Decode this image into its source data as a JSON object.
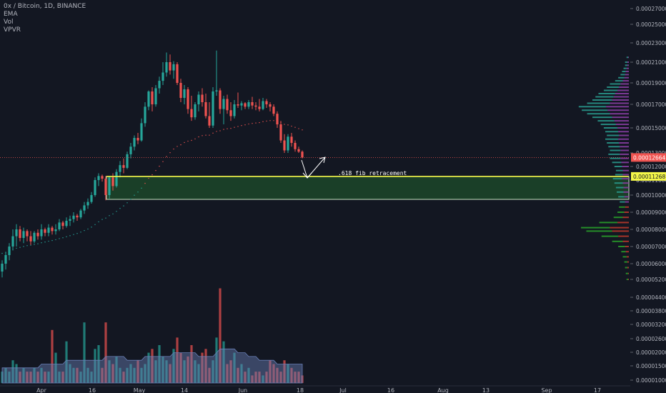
{
  "legend": {
    "title": "0x / Bitcoin, 1D, BINANCE",
    "indicators": [
      "EMA",
      "Vol",
      "VPVR"
    ]
  },
  "colors": {
    "background": "#131722",
    "up": "#26a69a",
    "down": "#ef5350",
    "fib_line": "#f5f749",
    "zone_fill": "#1e4d2b",
    "zone_border": "#c9e6c4",
    "current_price": "#ef5350",
    "volume_ma": "#6a80b8",
    "vpvr_up": "#2a9d8f",
    "vpvr_down": "#8e3fa8",
    "vpvr_green": "#29a329",
    "vpvr_red": "#c0392b"
  },
  "chart_data": {
    "type": "candlestick",
    "symbol": "0x / Bitcoin",
    "timeframe": "1D",
    "exchange": "BINANCE",
    "x_axis_labels": [
      "Apr",
      "16",
      "May",
      "14",
      "Jun",
      "18",
      "Jul",
      "16",
      "Aug",
      "13",
      "Sep",
      "17"
    ],
    "price_axis_labels": [
      "0.00027000",
      "0.00025000",
      "0.00023000",
      "0.00021000",
      "0.00019000",
      "0.00017000",
      "0.00015000",
      "0.00013000",
      "0.00012000",
      "0.00011000",
      "0.00010000",
      "0.00009000",
      "0.00008000",
      "0.00007000",
      "0.00006000",
      "0.00005200"
    ],
    "volume_axis_labels": [
      "0.00004400",
      "0.00003800",
      "0.00003200",
      "0.00002600",
      "0.00002000",
      "0.00001500",
      "0.00001000"
    ],
    "current_price": "0.00012664",
    "fib_price": "0.00011268",
    "annotation": ".618 fib retracement",
    "zone": {
      "top": 0.00011268,
      "bottom": 9.75e-05
    },
    "candles": [
      {
        "o": 5.6e-05,
        "h": 6.2e-05,
        "l": 5.3e-05,
        "c": 6e-05
      },
      {
        "o": 6e-05,
        "h": 6.7e-05,
        "l": 5.7e-05,
        "c": 6.5e-05
      },
      {
        "o": 6.5e-05,
        "h": 7.2e-05,
        "l": 6.2e-05,
        "c": 7e-05
      },
      {
        "o": 7e-05,
        "h": 8e-05,
        "l": 6.8e-05,
        "c": 7.6e-05
      },
      {
        "o": 7.6e-05,
        "h": 8.3e-05,
        "l": 7e-05,
        "c": 8e-05
      },
      {
        "o": 8e-05,
        "h": 8.2e-05,
        "l": 7.3e-05,
        "c": 7.5e-05
      },
      {
        "o": 7.5e-05,
        "h": 8.1e-05,
        "l": 7.2e-05,
        "c": 7.9e-05
      },
      {
        "o": 7.9e-05,
        "h": 8e-05,
        "l": 7.3e-05,
        "c": 7.6e-05
      },
      {
        "o": 7.6e-05,
        "h": 7.9e-05,
        "l": 7.1e-05,
        "c": 7.3e-05
      },
      {
        "o": 7.3e-05,
        "h": 7.9e-05,
        "l": 7.2e-05,
        "c": 7.8e-05
      },
      {
        "o": 7.8e-05,
        "h": 8e-05,
        "l": 7.4e-05,
        "c": 7.6e-05
      },
      {
        "o": 7.6e-05,
        "h": 8.3e-05,
        "l": 7.4e-05,
        "c": 8e-05
      },
      {
        "o": 8e-05,
        "h": 8.1e-05,
        "l": 7.6e-05,
        "c": 7.8e-05
      },
      {
        "o": 7.8e-05,
        "h": 8.3e-05,
        "l": 7.6e-05,
        "c": 8.1e-05
      },
      {
        "o": 8.1e-05,
        "h": 8.2e-05,
        "l": 7.7e-05,
        "c": 7.9e-05
      },
      {
        "o": 7.9e-05,
        "h": 8.3e-05,
        "l": 7.7e-05,
        "c": 8e-05
      },
      {
        "o": 8e-05,
        "h": 8.6e-05,
        "l": 7.9e-05,
        "c": 8.4e-05
      },
      {
        "o": 8.4e-05,
        "h": 8.5e-05,
        "l": 8e-05,
        "c": 8.2e-05
      },
      {
        "o": 8.2e-05,
        "h": 8.7e-05,
        "l": 8.1e-05,
        "c": 8.5e-05
      },
      {
        "o": 8.5e-05,
        "h": 8.8e-05,
        "l": 8.2e-05,
        "c": 8.6e-05
      },
      {
        "o": 8.6e-05,
        "h": 9e-05,
        "l": 8.4e-05,
        "c": 8.8e-05
      },
      {
        "o": 8.8e-05,
        "h": 8.9e-05,
        "l": 8.5e-05,
        "c": 8.7e-05
      },
      {
        "o": 8.7e-05,
        "h": 9.2e-05,
        "l": 8.6e-05,
        "c": 9.1e-05
      },
      {
        "o": 9.1e-05,
        "h": 9.6e-05,
        "l": 8.9e-05,
        "c": 9.4e-05
      },
      {
        "o": 9.4e-05,
        "h": 9.8e-05,
        "l": 9.2e-05,
        "c": 9.6e-05
      },
      {
        "o": 9.6e-05,
        "h": 0.000102,
        "l": 9.5e-05,
        "c": 0.0001
      },
      {
        "o": 0.0001,
        "h": 0.000112,
        "l": 9.9e-05,
        "c": 0.00011
      },
      {
        "o": 0.00011,
        "h": 0.000115,
        "l": 0.000106,
        "c": 0.000113
      },
      {
        "o": 0.000113,
        "h": 0.000114,
        "l": 0.000109,
        "c": 0.000111
      },
      {
        "o": 0.000111,
        "h": 0.000113,
        "l": 9.7e-05,
        "c": 0.0001
      },
      {
        "o": 0.0001,
        "h": 0.000113,
        "l": 9.8e-05,
        "c": 0.000112
      },
      {
        "o": 0.000112,
        "h": 0.000115,
        "l": 0.000103,
        "c": 0.000106
      },
      {
        "o": 0.000106,
        "h": 0.000118,
        "l": 0.000105,
        "c": 0.000116
      },
      {
        "o": 0.000116,
        "h": 0.000124,
        "l": 0.000112,
        "c": 0.000121
      },
      {
        "o": 0.000121,
        "h": 0.000126,
        "l": 0.000115,
        "c": 0.000119
      },
      {
        "o": 0.000119,
        "h": 0.000131,
        "l": 0.000118,
        "c": 0.000129
      },
      {
        "o": 0.000129,
        "h": 0.000138,
        "l": 0.000126,
        "c": 0.000135
      },
      {
        "o": 0.000135,
        "h": 0.000144,
        "l": 0.000132,
        "c": 0.000142
      },
      {
        "o": 0.000142,
        "h": 0.000146,
        "l": 0.000137,
        "c": 0.00014
      },
      {
        "o": 0.00014,
        "h": 0.000158,
        "l": 0.000139,
        "c": 0.000154
      },
      {
        "o": 0.000154,
        "h": 0.000172,
        "l": 0.000151,
        "c": 0.000168
      },
      {
        "o": 0.000168,
        "h": 0.000183,
        "l": 0.000165,
        "c": 0.000182
      },
      {
        "o": 0.000182,
        "h": 0.000186,
        "l": 0.000164,
        "c": 0.00017
      },
      {
        "o": 0.00017,
        "h": 0.000188,
        "l": 0.000168,
        "c": 0.000185
      },
      {
        "o": 0.000185,
        "h": 0.000196,
        "l": 0.00018,
        "c": 0.000192
      },
      {
        "o": 0.000192,
        "h": 0.00021,
        "l": 0.000188,
        "c": 0.0002
      },
      {
        "o": 0.0002,
        "h": 0.00022,
        "l": 0.000196,
        "c": 0.00021
      },
      {
        "o": 0.00021,
        "h": 0.000218,
        "l": 0.000198,
        "c": 0.000202
      },
      {
        "o": 0.000202,
        "h": 0.000211,
        "l": 0.000194,
        "c": 0.000208
      },
      {
        "o": 0.000208,
        "h": 0.00021,
        "l": 0.000188,
        "c": 0.00019
      },
      {
        "o": 0.00019,
        "h": 0.000194,
        "l": 0.000172,
        "c": 0.000176
      },
      {
        "o": 0.000176,
        "h": 0.000188,
        "l": 0.00017,
        "c": 0.000184
      },
      {
        "o": 0.000184,
        "h": 0.000186,
        "l": 0.000162,
        "c": 0.000166
      },
      {
        "o": 0.000166,
        "h": 0.000178,
        "l": 0.000156,
        "c": 0.000159
      },
      {
        "o": 0.000159,
        "h": 0.000172,
        "l": 0.000157,
        "c": 0.00017
      },
      {
        "o": 0.00017,
        "h": 0.000182,
        "l": 0.000164,
        "c": 0.000179
      },
      {
        "o": 0.000179,
        "h": 0.000185,
        "l": 0.000168,
        "c": 0.000172
      },
      {
        "o": 0.000172,
        "h": 0.00018,
        "l": 0.000158,
        "c": 0.00016
      },
      {
        "o": 0.00016,
        "h": 0.000172,
        "l": 0.00015,
        "c": 0.000152
      },
      {
        "o": 0.000152,
        "h": 0.000186,
        "l": 0.00015,
        "c": 0.000182
      },
      {
        "o": 0.000182,
        "h": 0.000222,
        "l": 0.000178,
        "c": 0.000183
      },
      {
        "o": 0.000183,
        "h": 0.000185,
        "l": 0.000162,
        "c": 0.000166
      },
      {
        "o": 0.000166,
        "h": 0.000178,
        "l": 0.000153,
        "c": 0.000175
      },
      {
        "o": 0.000175,
        "h": 0.000179,
        "l": 0.000162,
        "c": 0.000165
      },
      {
        "o": 0.000165,
        "h": 0.000172,
        "l": 0.000156,
        "c": 0.00016
      },
      {
        "o": 0.00016,
        "h": 0.000174,
        "l": 0.000158,
        "c": 0.00017
      },
      {
        "o": 0.00017,
        "h": 0.000181,
        "l": 0.000167,
        "c": 0.000169
      },
      {
        "o": 0.000169,
        "h": 0.000173,
        "l": 0.000165,
        "c": 0.000171
      },
      {
        "o": 0.000171,
        "h": 0.000172,
        "l": 0.000166,
        "c": 0.000168
      },
      {
        "o": 0.000168,
        "h": 0.000174,
        "l": 0.000166,
        "c": 0.000172
      },
      {
        "o": 0.000172,
        "h": 0.000177,
        "l": 0.000166,
        "c": 0.000169
      },
      {
        "o": 0.000169,
        "h": 0.000172,
        "l": 0.000165,
        "c": 0.000168
      },
      {
        "o": 0.000168,
        "h": 0.000175,
        "l": 0.000164,
        "c": 0.000166
      },
      {
        "o": 0.000166,
        "h": 0.000176,
        "l": 0.000165,
        "c": 0.000173
      },
      {
        "o": 0.000173,
        "h": 0.000175,
        "l": 0.000167,
        "c": 0.00017
      },
      {
        "o": 0.00017,
        "h": 0.000172,
        "l": 0.000164,
        "c": 0.000168
      },
      {
        "o": 0.000168,
        "h": 0.00017,
        "l": 0.00016,
        "c": 0.000162
      },
      {
        "o": 0.000162,
        "h": 0.000164,
        "l": 0.00015,
        "c": 0.000153
      },
      {
        "o": 0.000153,
        "h": 0.000156,
        "l": 0.000138,
        "c": 0.00014
      },
      {
        "o": 0.00014,
        "h": 0.000145,
        "l": 0.00013,
        "c": 0.000132
      },
      {
        "o": 0.000132,
        "h": 0.000145,
        "l": 0.00013,
        "c": 0.000143
      },
      {
        "o": 0.000143,
        "h": 0.000146,
        "l": 0.000135,
        "c": 0.000138
      },
      {
        "o": 0.000138,
        "h": 0.00014,
        "l": 0.000131,
        "c": 0.000133
      },
      {
        "o": 0.000133,
        "h": 0.000135,
        "l": 0.00013,
        "c": 0.000131
      },
      {
        "o": 0.000131,
        "h": 0.000132,
        "l": 0.000126,
        "c": 0.0001266
      }
    ],
    "volume": [
      3,
      4,
      3,
      6,
      5,
      3,
      4,
      3,
      3,
      4,
      3,
      4,
      3,
      3,
      14,
      8,
      3,
      3,
      11,
      5,
      4,
      4,
      3,
      16,
      4,
      3,
      9,
      10,
      4,
      16,
      6,
      5,
      7,
      4,
      3,
      4,
      5,
      4,
      6,
      4,
      5,
      8,
      9,
      6,
      10,
      7,
      6,
      5,
      9,
      12,
      8,
      6,
      7,
      10,
      6,
      5,
      8,
      9,
      4,
      6,
      12,
      25,
      11,
      5,
      6,
      8,
      4,
      5,
      3,
      4,
      2,
      3,
      3,
      2,
      3,
      6,
      5,
      4,
      3,
      6,
      5,
      4,
      3,
      3,
      2
    ],
    "volume_ma": [
      4,
      4,
      4,
      4,
      4,
      4,
      4,
      4,
      4,
      4,
      4,
      5,
      5,
      5,
      5,
      5,
      5,
      5,
      6,
      6,
      6,
      6,
      6,
      6,
      6,
      6,
      6,
      6,
      6,
      7,
      7,
      7,
      7,
      7,
      7,
      6,
      6,
      6,
      6,
      6,
      7,
      7,
      7,
      7,
      7,
      7,
      7,
      7,
      8,
      8,
      8,
      8,
      8,
      8,
      8,
      7,
      7,
      7,
      7,
      7,
      8,
      9,
      9,
      9,
      9,
      9,
      8,
      8,
      8,
      7,
      7,
      7,
      6,
      6,
      6,
      6,
      6,
      5,
      5,
      5,
      5,
      5,
      5,
      5,
      5
    ],
    "ema": [
      6.6e-05,
      6.65e-05,
      6.7e-05,
      6.8e-05,
      6.9e-05,
      6.95e-05,
      7e-05,
      7.05e-05,
      7.08e-05,
      7.12e-05,
      7.16e-05,
      7.22e-05,
      7.26e-05,
      7.31e-05,
      7.35e-05,
      7.4e-05,
      7.46e-05,
      7.51e-05,
      7.57e-05,
      7.63e-05,
      7.7e-05,
      7.76e-05,
      7.84e-05,
      7.93e-05,
      8.02e-05,
      8.13e-05,
      8.28e-05,
      8.44e-05,
      8.58e-05,
      8.66e-05,
      8.8e-05,
      8.9e-05,
      9.05e-05,
      9.22e-05,
      9.37e-05,
      9.55e-05,
      9.76e-05,
      9.99e-05,
      0.000102,
      0.0001046,
      0.0001078,
      0.0001113,
      0.0001139,
      0.000117,
      0.0001202,
      0.0001236,
      0.0001273,
      0.0001302,
      0.0001331,
      0.0001352,
      0.0001365,
      0.0001383,
      0.0001394,
      0.00014,
      0.0001412,
      0.0001428,
      0.0001438,
      0.0001442,
      0.0001442,
      0.0001458,
      0.0001472,
      0.0001477,
      0.0001488,
      0.0001493,
      0.0001496,
      0.0001505,
      0.0001512,
      0.000152,
      0.0001526,
      0.0001533,
      0.0001538,
      0.0001542,
      0.0001545,
      0.0001553,
      0.0001558,
      0.0001562,
      0.0001562,
      0.0001558,
      0.0001545,
      0.000153,
      0.0001525,
      0.0001515,
      0.0001505,
      0.0001494,
      0.0001484
    ],
    "vpvr": [
      {
        "price": 5.2e-05,
        "up": 2,
        "down": 1
      },
      {
        "price": 5.5e-05,
        "up": 3,
        "down": 1
      },
      {
        "price": 5.8e-05,
        "up": 3,
        "down": 2
      },
      {
        "price": 6.1e-05,
        "up": 4,
        "down": 2
      },
      {
        "price": 6.4e-05,
        "up": 5,
        "down": 3
      },
      {
        "price": 6.7e-05,
        "up": 6,
        "down": 4
      },
      {
        "price": 7e-05,
        "up": 9,
        "down": 5
      },
      {
        "price": 7.3e-05,
        "up": 14,
        "down": 8
      },
      {
        "price": 7.6e-05,
        "up": 22,
        "down": 14
      },
      {
        "price": 7.9e-05,
        "up": 34,
        "down": 22
      },
      {
        "price": 8.1e-05,
        "up": 38,
        "down": 25
      },
      {
        "price": 8.4e-05,
        "up": 24,
        "down": 15
      },
      {
        "price": 8.7e-05,
        "up": 12,
        "down": 8
      },
      {
        "price": 9e-05,
        "up": 9,
        "down": 6
      },
      {
        "price": 9.3e-05,
        "up": 8,
        "down": 5
      },
      {
        "price": 9.6e-05,
        "up": 7,
        "down": 5
      },
      {
        "price": 9.9e-05,
        "up": 8,
        "down": 6
      },
      {
        "price": 0.000102,
        "up": 9,
        "down": 7
      },
      {
        "price": 0.000105,
        "up": 10,
        "down": 7
      },
      {
        "price": 0.000108,
        "up": 11,
        "down": 8
      },
      {
        "price": 0.000111,
        "up": 12,
        "down": 9
      },
      {
        "price": 0.000114,
        "up": 10,
        "down": 8
      },
      {
        "price": 0.000117,
        "up": 9,
        "down": 8
      },
      {
        "price": 0.00012,
        "up": 10,
        "down": 9
      },
      {
        "price": 0.000123,
        "up": 12,
        "down": 10
      },
      {
        "price": 0.000126,
        "up": 14,
        "down": 11
      },
      {
        "price": 0.000129,
        "up": 15,
        "down": 12
      },
      {
        "price": 0.000132,
        "up": 14,
        "down": 11
      },
      {
        "price": 0.000135,
        "up": 15,
        "down": 12
      },
      {
        "price": 0.000138,
        "up": 16,
        "down": 13
      },
      {
        "price": 0.000141,
        "up": 17,
        "down": 14
      },
      {
        "price": 0.000144,
        "up": 16,
        "down": 13
      },
      {
        "price": 0.000147,
        "up": 17,
        "down": 14
      },
      {
        "price": 0.00015,
        "up": 18,
        "down": 15
      },
      {
        "price": 0.000153,
        "up": 20,
        "down": 17
      },
      {
        "price": 0.000156,
        "up": 22,
        "down": 19
      },
      {
        "price": 0.000159,
        "up": 26,
        "down": 22
      },
      {
        "price": 0.000162,
        "up": 30,
        "down": 25
      },
      {
        "price": 0.000165,
        "up": 34,
        "down": 28
      },
      {
        "price": 0.000168,
        "up": 36,
        "down": 30
      },
      {
        "price": 0.000171,
        "up": 30,
        "down": 25
      },
      {
        "price": 0.000174,
        "up": 26,
        "down": 22
      },
      {
        "price": 0.000177,
        "up": 24,
        "down": 20
      },
      {
        "price": 0.00018,
        "up": 22,
        "down": 18
      },
      {
        "price": 0.000183,
        "up": 18,
        "down": 15
      },
      {
        "price": 0.000186,
        "up": 16,
        "down": 13
      },
      {
        "price": 0.000189,
        "up": 14,
        "down": 11
      },
      {
        "price": 0.000192,
        "up": 10,
        "down": 8
      },
      {
        "price": 0.000195,
        "up": 8,
        "down": 6
      },
      {
        "price": 0.000198,
        "up": 6,
        "down": 5
      },
      {
        "price": 0.000201,
        "up": 5,
        "down": 4
      },
      {
        "price": 0.000204,
        "up": 4,
        "down": 3
      },
      {
        "price": 0.000207,
        "up": 3,
        "down": 2
      },
      {
        "price": 0.00021,
        "up": 3,
        "down": 2
      },
      {
        "price": 0.000215,
        "up": 2,
        "down": 1
      }
    ]
  }
}
